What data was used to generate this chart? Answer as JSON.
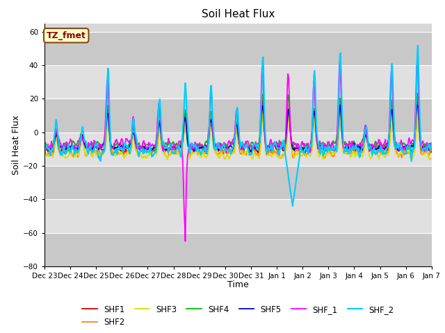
{
  "title": "Soil Heat Flux",
  "xlabel": "Time",
  "ylabel": "Soil Heat Flux",
  "ylim": [
    -80,
    65
  ],
  "annotation": "TZ_fmet",
  "series_names": [
    "SHF1",
    "SHF2",
    "SHF3",
    "SHF4",
    "SHF5",
    "SHF_1",
    "SHF_2"
  ],
  "series_colors": [
    "#cc0000",
    "#ff8800",
    "#dddd00",
    "#00bb00",
    "#0000cc",
    "#ff00ff",
    "#00ccff"
  ],
  "series_linewidths": [
    1.3,
    1.3,
    1.3,
    1.3,
    1.3,
    1.3,
    1.5
  ],
  "background_color": "#ffffff",
  "plot_bg_color": "#d8d8d8",
  "yticks": [
    -80,
    -60,
    -40,
    -20,
    0,
    20,
    40,
    60
  ],
  "xtick_labels": [
    "Dec 23",
    "Dec 24",
    "Dec 25",
    "Dec 26",
    "Dec 27",
    "Dec 28",
    "Dec 29",
    "Dec 30",
    "Dec 31",
    "Jan 1",
    "Jan 2",
    "Jan 3",
    "Jan 4",
    "Jan 5",
    "Jan 6",
    "Jan 7"
  ],
  "n_points": 672,
  "seed": 7
}
